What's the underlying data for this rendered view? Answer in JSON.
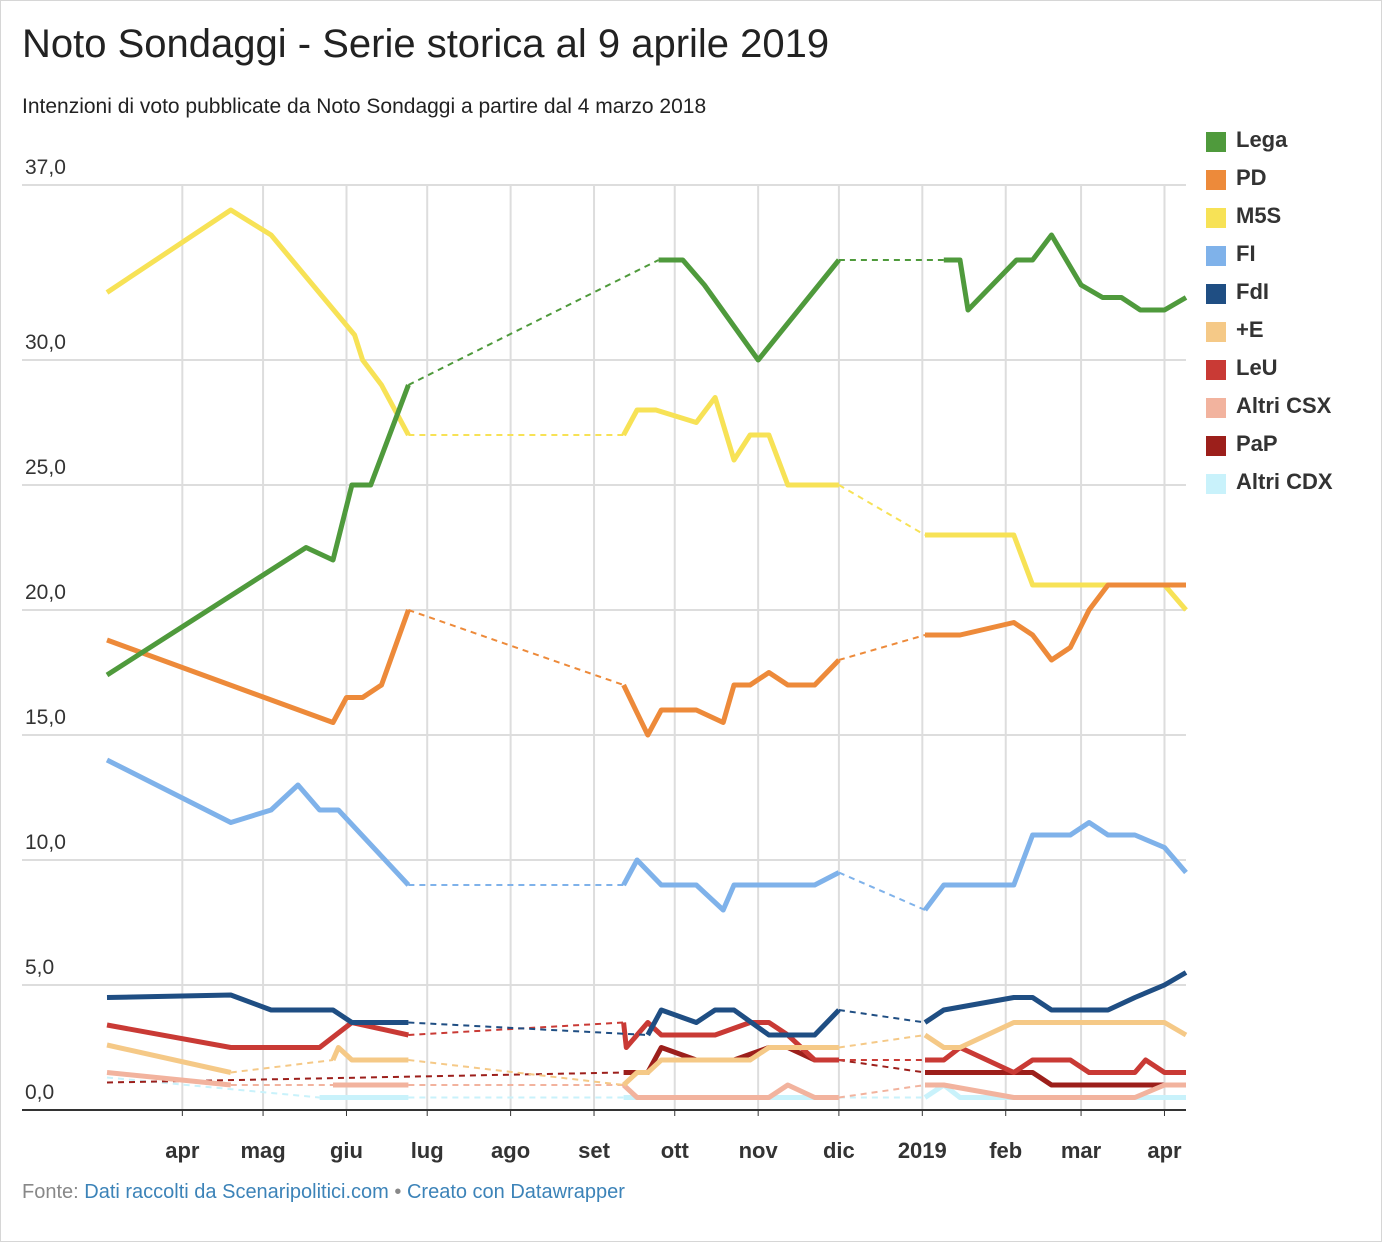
{
  "header": {
    "title": "Noto Sondaggi - Serie storica al 9 aprile 2019",
    "subtitle": "Intenzioni di voto pubblicate da Noto Sondaggi a partire dal 4 marzo 2018"
  },
  "footer": {
    "prefix": "Fonte:",
    "source_link": "Dati raccolti da Scenaripolitici.com",
    "separator": "•",
    "tool_link": "Creato con Datawrapper"
  },
  "chart_data": {
    "type": "line",
    "title": "Noto Sondaggi - Serie storica al 9 aprile 2019",
    "subtitle": "Intenzioni di voto pubblicate da Noto Sondaggi a partire dal 4 marzo 2018",
    "xlabel": "",
    "ylabel": "",
    "xlim": [
      "2018-03-04",
      "2019-04-09"
    ],
    "ylim": [
      0,
      37
    ],
    "y_ticks": [
      {
        "value": 0,
        "label": "0,0"
      },
      {
        "value": 5,
        "label": "5,0"
      },
      {
        "value": 10,
        "label": "10,0"
      },
      {
        "value": 15,
        "label": "15,0"
      },
      {
        "value": 20,
        "label": "20,0"
      },
      {
        "value": 25,
        "label": "25,0"
      },
      {
        "value": 30,
        "label": "30,0"
      },
      {
        "value": 37,
        "label": "37,0"
      }
    ],
    "x_ticks": [
      {
        "date": "2018-04-01",
        "label": "apr"
      },
      {
        "date": "2018-05-01",
        "label": "mag"
      },
      {
        "date": "2018-06-01",
        "label": "giu"
      },
      {
        "date": "2018-07-01",
        "label": "lug"
      },
      {
        "date": "2018-08-01",
        "label": "ago"
      },
      {
        "date": "2018-09-01",
        "label": "set"
      },
      {
        "date": "2018-10-01",
        "label": "ott"
      },
      {
        "date": "2018-11-01",
        "label": "nov"
      },
      {
        "date": "2018-12-01",
        "label": "dic"
      },
      {
        "date": "2019-01-01",
        "label": "2019"
      },
      {
        "date": "2019-02-01",
        "label": "feb"
      },
      {
        "date": "2019-03-01",
        "label": "mar"
      },
      {
        "date": "2019-04-01",
        "label": "apr"
      }
    ],
    "grid": true,
    "legend_position": "right",
    "gap_style": "dashed",
    "series": [
      {
        "name": "Lega",
        "color": "#4f9a3c",
        "points": [
          [
            "2018-03-04",
            17.4
          ],
          [
            "2018-05-17",
            22.5
          ],
          [
            "2018-05-27",
            22.0
          ],
          [
            "2018-06-03",
            25.0
          ],
          [
            "2018-06-10",
            25.0
          ],
          [
            "2018-06-24",
            29.0
          ],
          null,
          [
            "2018-09-25",
            34.0
          ],
          [
            "2018-10-04",
            34.0
          ],
          [
            "2018-10-12",
            33.0
          ],
          [
            "2018-11-01",
            30.0
          ],
          [
            "2018-12-01",
            34.0
          ],
          null,
          [
            "2019-01-09",
            34.0
          ],
          [
            "2019-01-15",
            34.0
          ],
          [
            "2019-01-18",
            32.0
          ],
          [
            "2019-02-05",
            34.0
          ],
          [
            "2019-02-11",
            34.0
          ],
          [
            "2019-02-18",
            35.0
          ],
          [
            "2019-03-01",
            33.0
          ],
          [
            "2019-03-09",
            32.5
          ],
          [
            "2019-03-16",
            32.5
          ],
          [
            "2019-03-23",
            32.0
          ],
          [
            "2019-04-01",
            32.0
          ],
          [
            "2019-04-09",
            32.5
          ]
        ]
      },
      {
        "name": "PD",
        "color": "#ed8a3a",
        "points": [
          [
            "2018-03-04",
            18.8
          ],
          [
            "2018-05-27",
            15.5
          ],
          [
            "2018-06-01",
            16.5
          ],
          [
            "2018-06-07",
            16.5
          ],
          [
            "2018-06-14",
            17.0
          ],
          [
            "2018-06-24",
            20.0
          ],
          null,
          [
            "2018-09-12",
            17.0
          ],
          [
            "2018-09-21",
            15.0
          ],
          [
            "2018-09-26",
            16.0
          ],
          [
            "2018-10-03",
            16.0
          ],
          [
            "2018-10-09",
            16.0
          ],
          [
            "2018-10-19",
            15.5
          ],
          [
            "2018-10-23",
            17.0
          ],
          [
            "2018-10-29",
            17.0
          ],
          [
            "2018-11-05",
            17.5
          ],
          [
            "2018-11-12",
            17.0
          ],
          [
            "2018-11-22",
            17.0
          ],
          [
            "2018-12-01",
            18.0
          ],
          null,
          [
            "2019-01-02",
            19.0
          ],
          [
            "2019-01-15",
            19.0
          ],
          [
            "2019-02-04",
            19.5
          ],
          [
            "2019-02-11",
            19.0
          ],
          [
            "2019-02-18",
            18.0
          ],
          [
            "2019-02-25",
            18.5
          ],
          [
            "2019-03-04",
            20.0
          ],
          [
            "2019-03-11",
            21.0
          ],
          [
            "2019-03-25",
            21.0
          ],
          [
            "2019-04-09",
            21.0
          ]
        ]
      },
      {
        "name": "M5S",
        "color": "#f7e256",
        "points": [
          [
            "2018-03-04",
            32.7
          ],
          [
            "2018-04-19",
            36.0
          ],
          [
            "2018-05-04",
            35.0
          ],
          [
            "2018-06-04",
            31.0
          ],
          [
            "2018-06-07",
            30.0
          ],
          [
            "2018-06-14",
            29.0
          ],
          [
            "2018-06-24",
            27.0
          ],
          null,
          [
            "2018-09-12",
            27.0
          ],
          [
            "2018-09-17",
            28.0
          ],
          [
            "2018-09-24",
            28.0
          ],
          [
            "2018-10-09",
            27.5
          ],
          [
            "2018-10-16",
            28.5
          ],
          [
            "2018-10-23",
            26.0
          ],
          [
            "2018-10-29",
            27.0
          ],
          [
            "2018-11-05",
            27.0
          ],
          [
            "2018-11-12",
            25.0
          ],
          [
            "2018-12-01",
            25.0
          ],
          null,
          [
            "2019-01-02",
            23.0
          ],
          [
            "2019-01-15",
            23.0
          ],
          [
            "2019-02-04",
            23.0
          ],
          [
            "2019-02-11",
            21.0
          ],
          [
            "2019-03-01",
            21.0
          ],
          [
            "2019-03-21",
            21.0
          ],
          [
            "2019-04-01",
            21.0
          ],
          [
            "2019-04-09",
            20.0
          ]
        ]
      },
      {
        "name": "FI",
        "color": "#7fb2ea",
        "points": [
          [
            "2018-03-04",
            14.0
          ],
          [
            "2018-04-19",
            11.5
          ],
          [
            "2018-05-04",
            12.0
          ],
          [
            "2018-05-14",
            13.0
          ],
          [
            "2018-05-22",
            12.0
          ],
          [
            "2018-05-29",
            12.0
          ],
          [
            "2018-06-24",
            9.0
          ],
          null,
          [
            "2018-09-12",
            9.0
          ],
          [
            "2018-09-17",
            10.0
          ],
          [
            "2018-09-26",
            9.0
          ],
          [
            "2018-10-09",
            9.0
          ],
          [
            "2018-10-19",
            8.0
          ],
          [
            "2018-10-23",
            9.0
          ],
          [
            "2018-11-05",
            9.0
          ],
          [
            "2018-11-12",
            9.0
          ],
          [
            "2018-11-22",
            9.0
          ],
          [
            "2018-12-01",
            9.5
          ],
          null,
          [
            "2019-01-02",
            8.0
          ],
          [
            "2019-01-09",
            9.0
          ],
          [
            "2019-01-15",
            9.0
          ],
          [
            "2019-02-04",
            9.0
          ],
          [
            "2019-02-11",
            11.0
          ],
          [
            "2019-02-25",
            11.0
          ],
          [
            "2019-03-04",
            11.5
          ],
          [
            "2019-03-11",
            11.0
          ],
          [
            "2019-03-21",
            11.0
          ],
          [
            "2019-04-01",
            10.5
          ],
          [
            "2019-04-09",
            9.5
          ]
        ]
      },
      {
        "name": "FdI",
        "color": "#1f4e83",
        "points": [
          [
            "2018-03-04",
            4.5
          ],
          [
            "2018-04-19",
            4.6
          ],
          [
            "2018-05-04",
            4.0
          ],
          [
            "2018-05-27",
            4.0
          ],
          [
            "2018-06-03",
            3.5
          ],
          [
            "2018-06-24",
            3.5
          ],
          null,
          [
            "2018-09-21",
            3.0
          ],
          [
            "2018-09-26",
            4.0
          ],
          [
            "2018-10-09",
            3.5
          ],
          [
            "2018-10-16",
            4.0
          ],
          [
            "2018-10-23",
            4.0
          ],
          [
            "2018-11-05",
            3.0
          ],
          [
            "2018-11-22",
            3.0
          ],
          [
            "2018-12-01",
            4.0
          ],
          null,
          [
            "2019-01-02",
            3.5
          ],
          [
            "2019-01-09",
            4.0
          ],
          [
            "2019-02-04",
            4.5
          ],
          [
            "2019-02-11",
            4.5
          ],
          [
            "2019-02-18",
            4.0
          ],
          [
            "2019-02-25",
            4.0
          ],
          [
            "2019-03-11",
            4.0
          ],
          [
            "2019-03-21",
            4.5
          ],
          [
            "2019-04-01",
            5.0
          ],
          [
            "2019-04-09",
            5.5
          ]
        ]
      },
      {
        "name": "+E",
        "color": "#f5c987",
        "points": [
          [
            "2018-03-04",
            2.6
          ],
          [
            "2018-04-19",
            1.5
          ],
          null,
          [
            "2018-05-27",
            2.0
          ],
          [
            "2018-05-29",
            2.5
          ],
          [
            "2018-06-03",
            2.0
          ],
          [
            "2018-06-24",
            2.0
          ],
          null,
          [
            "2018-09-12",
            1.0
          ],
          [
            "2018-09-17",
            1.5
          ],
          [
            "2018-09-21",
            1.5
          ],
          [
            "2018-09-26",
            2.0
          ],
          [
            "2018-10-09",
            2.0
          ],
          [
            "2018-10-16",
            2.0
          ],
          [
            "2018-10-23",
            2.0
          ],
          [
            "2018-10-29",
            2.0
          ],
          [
            "2018-11-05",
            2.5
          ],
          [
            "2018-11-22",
            2.5
          ],
          [
            "2018-12-01",
            2.5
          ],
          null,
          [
            "2019-01-02",
            3.0
          ],
          [
            "2019-01-09",
            2.5
          ],
          [
            "2019-01-15",
            2.5
          ],
          [
            "2019-02-04",
            3.5
          ],
          [
            "2019-02-11",
            3.5
          ],
          [
            "2019-02-25",
            3.5
          ],
          [
            "2019-03-11",
            3.5
          ],
          [
            "2019-04-01",
            3.5
          ],
          [
            "2019-04-09",
            3.0
          ]
        ]
      },
      {
        "name": "LeU",
        "color": "#c93a35",
        "points": [
          [
            "2018-03-04",
            3.4
          ],
          [
            "2018-04-19",
            2.5
          ],
          [
            "2018-05-22",
            2.5
          ],
          [
            "2018-06-03",
            3.5
          ],
          [
            "2018-06-24",
            3.0
          ],
          null,
          [
            "2018-09-12",
            3.5
          ],
          [
            "2018-09-13",
            2.5
          ],
          [
            "2018-09-21",
            3.5
          ],
          [
            "2018-09-26",
            3.0
          ],
          [
            "2018-10-09",
            3.0
          ],
          [
            "2018-10-16",
            3.0
          ],
          [
            "2018-10-29",
            3.5
          ],
          [
            "2018-11-05",
            3.5
          ],
          [
            "2018-11-12",
            3.0
          ],
          [
            "2018-11-22",
            2.0
          ],
          [
            "2018-12-01",
            2.0
          ],
          null,
          [
            "2019-01-02",
            2.0
          ],
          [
            "2019-01-09",
            2.0
          ],
          [
            "2019-01-15",
            2.5
          ],
          [
            "2019-02-04",
            1.5
          ],
          [
            "2019-02-11",
            2.0
          ],
          [
            "2019-02-25",
            2.0
          ],
          [
            "2019-03-04",
            1.5
          ],
          [
            "2019-03-21",
            1.5
          ],
          [
            "2019-03-25",
            2.0
          ],
          [
            "2019-04-01",
            1.5
          ],
          [
            "2019-04-09",
            1.5
          ]
        ]
      },
      {
        "name": "Altri CSX",
        "color": "#f2b39e",
        "points": [
          [
            "2018-03-04",
            1.5
          ],
          [
            "2018-04-19",
            1.0
          ],
          null,
          [
            "2018-05-27",
            1.0
          ],
          [
            "2018-06-24",
            1.0
          ],
          null,
          [
            "2018-09-12",
            1.0
          ],
          [
            "2018-09-17",
            0.5
          ],
          [
            "2018-10-09",
            0.5
          ],
          [
            "2018-10-23",
            0.5
          ],
          [
            "2018-11-05",
            0.5
          ],
          [
            "2018-11-12",
            1.0
          ],
          [
            "2018-11-22",
            0.5
          ],
          [
            "2018-12-01",
            0.5
          ],
          null,
          [
            "2019-01-02",
            1.0
          ],
          [
            "2019-01-09",
            1.0
          ],
          [
            "2019-02-04",
            0.5
          ],
          [
            "2019-02-11",
            0.5
          ],
          [
            "2019-03-21",
            0.5
          ],
          [
            "2019-04-01",
            1.0
          ],
          [
            "2019-04-09",
            1.0
          ]
        ]
      },
      {
        "name": "PaP",
        "color": "#9c1f1b",
        "points": [
          [
            "2018-03-04",
            1.1
          ],
          null,
          [
            "2018-09-12",
            1.5
          ],
          [
            "2018-09-21",
            1.5
          ],
          [
            "2018-09-26",
            2.5
          ],
          [
            "2018-10-09",
            2.0
          ],
          [
            "2018-10-23",
            2.0
          ],
          [
            "2018-11-05",
            2.5
          ],
          [
            "2018-11-12",
            2.5
          ],
          [
            "2018-11-22",
            2.0
          ],
          [
            "2018-12-01",
            2.0
          ],
          null,
          [
            "2019-01-02",
            1.5
          ],
          [
            "2019-01-15",
            1.5
          ],
          [
            "2019-02-04",
            1.5
          ],
          [
            "2019-02-11",
            1.5
          ],
          [
            "2019-02-18",
            1.0
          ],
          [
            "2019-03-04",
            1.0
          ],
          [
            "2019-03-21",
            1.0
          ],
          [
            "2019-04-01",
            1.0
          ],
          [
            "2019-04-09",
            1.0
          ]
        ]
      },
      {
        "name": "Altri CDX",
        "color": "#c9f2fb",
        "points": [
          [
            "2018-03-04",
            1.3
          ],
          null,
          [
            "2018-05-22",
            0.5
          ],
          [
            "2018-06-24",
            0.5
          ],
          null,
          [
            "2018-09-12",
            0.5
          ],
          [
            "2018-10-09",
            0.5
          ],
          [
            "2018-10-23",
            0.5
          ],
          [
            "2018-11-22",
            0.5
          ],
          [
            "2018-12-01",
            0.5
          ],
          null,
          [
            "2019-01-02",
            0.5
          ],
          [
            "2019-01-09",
            1.0
          ],
          [
            "2019-01-15",
            0.5
          ],
          [
            "2019-02-04",
            0.5
          ],
          [
            "2019-03-21",
            0.5
          ],
          [
            "2019-04-09",
            0.5
          ]
        ]
      }
    ]
  }
}
